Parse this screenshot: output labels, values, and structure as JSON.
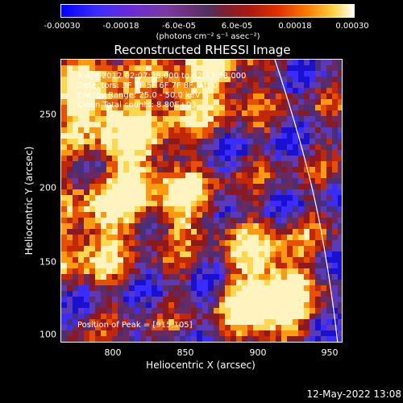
{
  "colorbar": {
    "ticks": [
      "-0.00030",
      "-0.00018",
      "-6.0e-05",
      "6.0e-05",
      "0.00018",
      "0.00030"
    ],
    "units": "(photons cm⁻² s⁻¹ asec⁻²)",
    "colors": [
      "#0000ff",
      "#503060",
      "#a81a10",
      "#ff7a00",
      "#ffffff"
    ]
  },
  "title": "Reconstructed RHESSI Image",
  "info": {
    "time_range": "9-Apr-2012 02:07:28.000 to 02:13:28.000",
    "detectors": "Detectors: 3F 4F 5F 6F 7F 8F, Att 0",
    "energy": "Energy Range: 25.0 - 50.0 keV",
    "clean_totals": "Clean     Total counts: 8.80E+03",
    "peak": "Position of Peak = [915,105]"
  },
  "axes": {
    "xlabel": "Heliocentric X (arcsec)",
    "ylabel": "Heliocentric Y (arcsec)",
    "xticks": [
      "800",
      "850",
      "900",
      "950"
    ],
    "yticks": [
      "250",
      "200",
      "150",
      "100"
    ]
  },
  "timestamp": "12-May-2022 13:08"
}
